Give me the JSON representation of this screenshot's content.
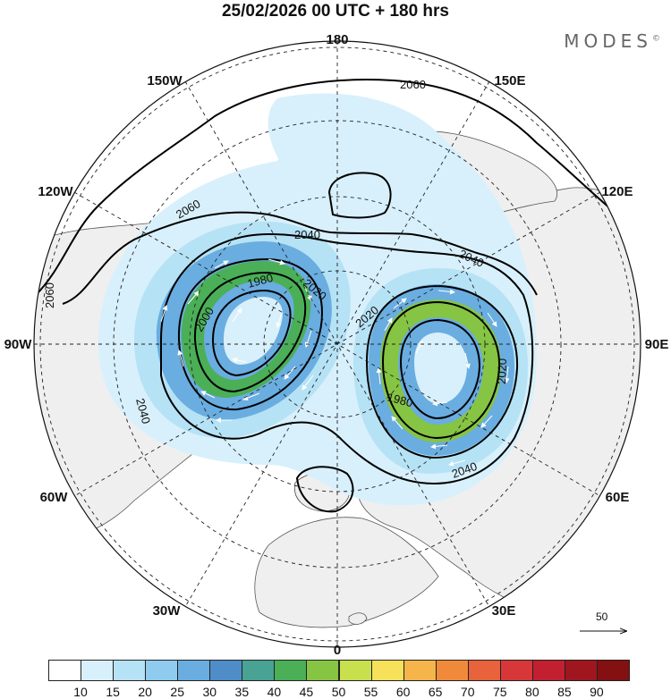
{
  "header": {
    "title": "25/02/2026  00 UTC  + 180 hrs",
    "brand": "MODES",
    "brand_mark": "©"
  },
  "map": {
    "projection": "north polar stereographic",
    "longitude_labels": [
      "180",
      "150E",
      "120E",
      "90E",
      "60E",
      "30E",
      "0",
      "30W",
      "60W",
      "90W",
      "120W",
      "150W"
    ],
    "contour_labels": [
      "2060",
      "2060",
      "2060",
      "2040",
      "2040",
      "2040",
      "2040",
      "2020",
      "2020",
      "2020",
      "2000",
      "1980",
      "1980"
    ],
    "colors": {
      "land": "#efefef",
      "ocean": "#ffffff",
      "coastline": "#444444",
      "contour": "#000000",
      "grid": "#222222",
      "arrows": "#ffffff"
    }
  },
  "vector_scale": {
    "label": "50"
  },
  "legend": {
    "ticks": [
      "10",
      "15",
      "20",
      "25",
      "30",
      "35",
      "40",
      "45",
      "50",
      "55",
      "60",
      "65",
      "70",
      "75",
      "80",
      "85",
      "90"
    ],
    "colors": [
      "#ffffff",
      "#d8f0fb",
      "#b6e2f5",
      "#8fcbee",
      "#6aade0",
      "#4f8dc8",
      "#48a394",
      "#4aaf57",
      "#86c443",
      "#c8df4e",
      "#f7e15a",
      "#f5b54a",
      "#f08a3a",
      "#e8623b",
      "#d8373a",
      "#c21f31",
      "#a0161e",
      "#841012"
    ]
  }
}
